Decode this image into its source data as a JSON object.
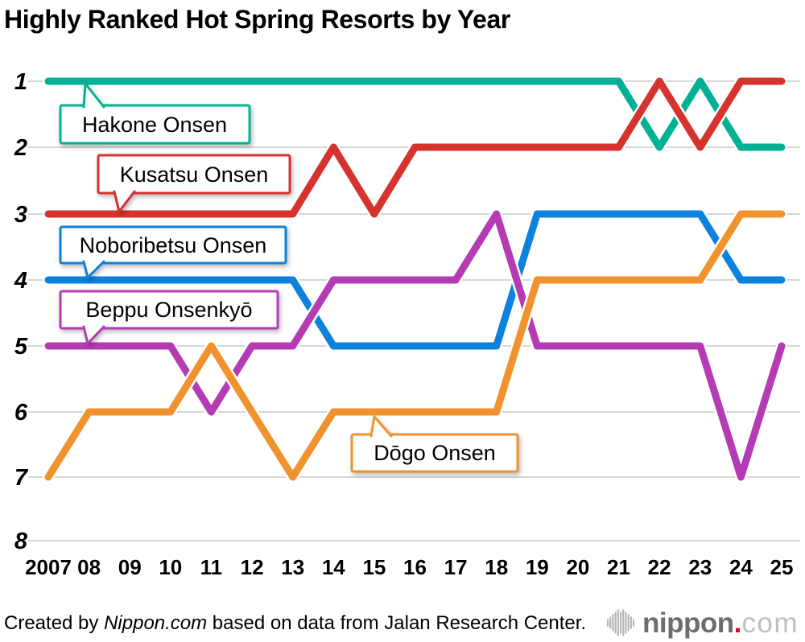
{
  "title": "Highly Ranked Hot Spring Resorts by Year",
  "footer": {
    "credit_prefix": "Created by ",
    "credit_source": "Nippon.com",
    "credit_suffix": " based on data from Jalan Research Center.",
    "logo_brand": "nippon",
    "logo_dot": ".",
    "logo_tld": "com"
  },
  "chart_data": {
    "type": "line",
    "title": "Highly Ranked Hot Spring Resorts by Year",
    "x_label": "Year",
    "y_label": "Rank",
    "y_inverted": true,
    "y_range": [
      1,
      8
    ],
    "grid": true,
    "gridline_color": "#c8c8c8",
    "legend_style": "callout-labels-on-chart",
    "y_ticks": [
      "1",
      "2",
      "3",
      "4",
      "5",
      "6",
      "7",
      "8"
    ],
    "x_tick_labels": [
      "2007",
      "08",
      "09",
      "10",
      "11",
      "12",
      "13",
      "14",
      "15",
      "16",
      "17",
      "18",
      "19",
      "20",
      "21",
      "22",
      "23",
      "24",
      "25"
    ],
    "years": [
      2007,
      2008,
      2009,
      2010,
      2011,
      2012,
      2013,
      2014,
      2015,
      2016,
      2017,
      2018,
      2019,
      2020,
      2021,
      2022,
      2023,
      2024,
      2025
    ],
    "series": [
      {
        "name": "Hakone Onsen",
        "color": "#00b293",
        "values": [
          1,
          1,
          1,
          1,
          1,
          1,
          1,
          1,
          1,
          1,
          1,
          1,
          1,
          1,
          1,
          2,
          1,
          2,
          2
        ]
      },
      {
        "name": "Kusatsu Onsen",
        "color": "#d6322e",
        "values": [
          3,
          3,
          3,
          3,
          3,
          3,
          3,
          2,
          3,
          2,
          2,
          2,
          2,
          2,
          2,
          1,
          2,
          1,
          1
        ]
      },
      {
        "name": "Noboribetsu Onsen",
        "color": "#0d82dc",
        "values": [
          4,
          4,
          4,
          4,
          4,
          4,
          4,
          5,
          5,
          5,
          5,
          5,
          3,
          3,
          3,
          3,
          3,
          4,
          4
        ]
      },
      {
        "name": "Beppu Onsenkyō",
        "color": "#b43bb4",
        "values": [
          5,
          5,
          5,
          5,
          6,
          5,
          5,
          4,
          4,
          4,
          4,
          3,
          5,
          5,
          5,
          5,
          5,
          7,
          5
        ]
      },
      {
        "name": "Dōgo Onsen",
        "color": "#f0932e",
        "values": [
          7,
          6,
          6,
          6,
          5,
          6,
          7,
          6,
          6,
          6,
          6,
          6,
          4,
          4,
          4,
          4,
          4,
          3,
          3
        ]
      }
    ]
  }
}
